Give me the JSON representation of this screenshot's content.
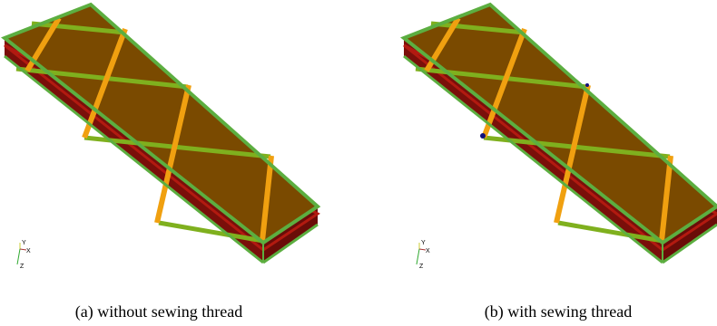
{
  "panels": [
    {
      "caption": "(a) without sewing thread",
      "axes": {
        "y": "Y",
        "x": "X",
        "z": "Z"
      }
    },
    {
      "caption": "(b) with sewing thread",
      "axes": {
        "y": "Y",
        "x": "X",
        "z": "Z"
      }
    }
  ]
}
